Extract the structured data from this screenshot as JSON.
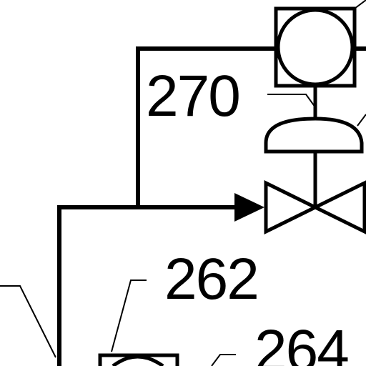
{
  "diagram": {
    "labels": {
      "ref_270": "270",
      "ref_262": "262",
      "ref_264": "264"
    },
    "components": [
      "instrument-box-top",
      "actuator-dome",
      "control-valve",
      "flow-arrow",
      "instrument-box-bottom"
    ]
  }
}
